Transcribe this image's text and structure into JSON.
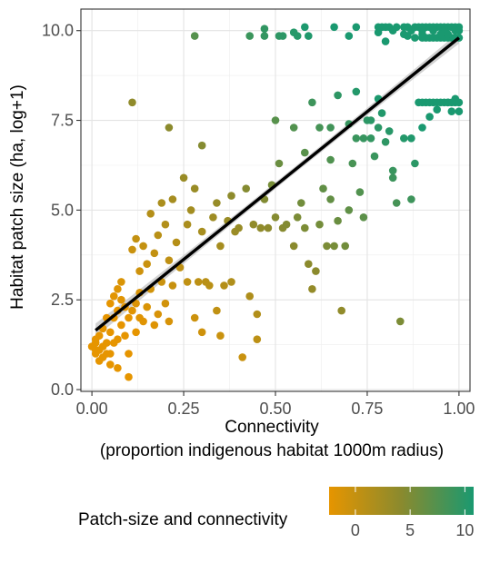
{
  "chart_data": {
    "type": "scatter",
    "xlabel_line1": "Connectivity",
    "xlabel_line2": "(proportion indigenous habitat 1000m radius)",
    "ylabel": "Habitat patch size (ha, log+1)",
    "xlim": [
      -0.03,
      1.03
    ],
    "ylim": [
      -0.05,
      10.6
    ],
    "x_ticks": [
      "0.00",
      "0.25",
      "0.50",
      "0.75",
      "1.00"
    ],
    "x_tick_values": [
      0,
      0.25,
      0.5,
      0.75,
      1.0
    ],
    "y_ticks": [
      "0.0",
      "2.5",
      "5.0",
      "7.5",
      "10.0"
    ],
    "y_tick_values": [
      0,
      2.5,
      5.0,
      7.5,
      10.0
    ],
    "grid": true,
    "trend_line": {
      "x": [
        0.01,
        1.0
      ],
      "y": [
        1.65,
        9.8
      ]
    },
    "legend": {
      "title": "Patch-size and connectivity",
      "position": "bottom",
      "ticks": [
        "0",
        "5",
        "10"
      ],
      "tick_values": [
        0,
        5,
        10
      ],
      "range": [
        -2.4,
        10.8
      ],
      "color_low": "#e69500",
      "color_mid": "#8a8a2e",
      "color_high": "#1a9970"
    },
    "points": [
      [
        0.0,
        1.2
      ],
      [
        0.01,
        1.0
      ],
      [
        0.01,
        1.1
      ],
      [
        0.01,
        1.3
      ],
      [
        0.01,
        1.4
      ],
      [
        0.02,
        0.8
      ],
      [
        0.02,
        1.1
      ],
      [
        0.02,
        1.5
      ],
      [
        0.03,
        0.9
      ],
      [
        0.03,
        1.2
      ],
      [
        0.03,
        1.7
      ],
      [
        0.04,
        1.0
      ],
      [
        0.04,
        1.3
      ],
      [
        0.04,
        2.0
      ],
      [
        0.05,
        0.7
      ],
      [
        0.05,
        1.0
      ],
      [
        0.05,
        1.6
      ],
      [
        0.05,
        2.4
      ],
      [
        0.06,
        1.3
      ],
      [
        0.06,
        2.0
      ],
      [
        0.06,
        2.6
      ],
      [
        0.07,
        0.6
      ],
      [
        0.07,
        1.4
      ],
      [
        0.07,
        2.2
      ],
      [
        0.07,
        2.8
      ],
      [
        0.08,
        1.8
      ],
      [
        0.08,
        2.5
      ],
      [
        0.08,
        3.0
      ],
      [
        0.09,
        1.5
      ],
      [
        0.09,
        2.3
      ],
      [
        0.1,
        1.0
      ],
      [
        0.1,
        2.0
      ],
      [
        0.1,
        0.35
      ],
      [
        0.11,
        2.2
      ],
      [
        0.11,
        3.9
      ],
      [
        0.12,
        1.6
      ],
      [
        0.12,
        2.4
      ],
      [
        0.12,
        4.2
      ],
      [
        0.13,
        2.0
      ],
      [
        0.13,
        3.3
      ],
      [
        0.13,
        2.7
      ],
      [
        0.14,
        1.9
      ],
      [
        0.14,
        4.0
      ],
      [
        0.15,
        2.3
      ],
      [
        0.15,
        3.5
      ],
      [
        0.16,
        2.8
      ],
      [
        0.16,
        4.9
      ],
      [
        0.17,
        1.8
      ],
      [
        0.17,
        3.8
      ],
      [
        0.18,
        2.1
      ],
      [
        0.18,
        4.3
      ],
      [
        0.19,
        3.0
      ],
      [
        0.19,
        5.2
      ],
      [
        0.2,
        2.4
      ],
      [
        0.2,
        4.6
      ],
      [
        0.21,
        3.6
      ],
      [
        0.21,
        1.9
      ],
      [
        0.22,
        5.3
      ],
      [
        0.22,
        2.9
      ],
      [
        0.23,
        4.1
      ],
      [
        0.24,
        3.4
      ],
      [
        0.25,
        5.9
      ],
      [
        0.26,
        3.0
      ],
      [
        0.26,
        4.6
      ],
      [
        0.27,
        5.0
      ],
      [
        0.28,
        2.0
      ],
      [
        0.28,
        5.6
      ],
      [
        0.29,
        3.0
      ],
      [
        0.3,
        4.4
      ],
      [
        0.3,
        1.6
      ],
      [
        0.31,
        3.0
      ],
      [
        0.32,
        2.9
      ],
      [
        0.33,
        4.8
      ],
      [
        0.34,
        2.2
      ],
      [
        0.34,
        5.2
      ],
      [
        0.35,
        1.5
      ],
      [
        0.35,
        4.0
      ],
      [
        0.36,
        2.9
      ],
      [
        0.37,
        4.7
      ],
      [
        0.38,
        5.4
      ],
      [
        0.38,
        3.0
      ],
      [
        0.39,
        4.4
      ],
      [
        0.4,
        4.5
      ],
      [
        0.41,
        0.9
      ],
      [
        0.42,
        5.6
      ],
      [
        0.43,
        2.6
      ],
      [
        0.44,
        4.6
      ],
      [
        0.45,
        2.1
      ],
      [
        0.45,
        1.4
      ],
      [
        0.46,
        4.5
      ],
      [
        0.47,
        5.3
      ],
      [
        0.48,
        4.5
      ],
      [
        0.49,
        5.7
      ],
      [
        0.5,
        4.8
      ],
      [
        0.51,
        6.3
      ],
      [
        0.52,
        4.5
      ],
      [
        0.53,
        4.6
      ],
      [
        0.55,
        4.0
      ],
      [
        0.56,
        4.8
      ],
      [
        0.57,
        5.2
      ],
      [
        0.58,
        4.5
      ],
      [
        0.58,
        6.6
      ],
      [
        0.59,
        3.5
      ],
      [
        0.6,
        2.8
      ],
      [
        0.61,
        3.3
      ],
      [
        0.62,
        4.6
      ],
      [
        0.63,
        5.6
      ],
      [
        0.64,
        4.0
      ],
      [
        0.65,
        5.3
      ],
      [
        0.65,
        6.4
      ],
      [
        0.66,
        4.0
      ],
      [
        0.67,
        4.7
      ],
      [
        0.68,
        2.2
      ],
      [
        0.69,
        4.0
      ],
      [
        0.7,
        5.0
      ],
      [
        0.71,
        6.3
      ],
      [
        0.72,
        7.0
      ],
      [
        0.73,
        5.5
      ],
      [
        0.74,
        4.8
      ],
      [
        0.75,
        7.5
      ],
      [
        0.76,
        7.0
      ],
      [
        0.77,
        6.5
      ],
      [
        0.78,
        7.3
      ],
      [
        0.8,
        6.9
      ],
      [
        0.81,
        7.2
      ],
      [
        0.82,
        5.9
      ],
      [
        0.83,
        5.2
      ],
      [
        0.84,
        1.9
      ],
      [
        0.85,
        7.0
      ],
      [
        0.87,
        5.3
      ],
      [
        0.88,
        6.3
      ],
      [
        0.9,
        7.3
      ],
      [
        0.92,
        7.6
      ],
      [
        0.94,
        7.8
      ],
      [
        0.97,
        8.0
      ],
      [
        0.99,
        8.1
      ],
      [
        0.11,
        8.0
      ],
      [
        0.21,
        7.3
      ],
      [
        0.3,
        6.8
      ],
      [
        0.5,
        7.5
      ],
      [
        0.55,
        7.3
      ],
      [
        0.6,
        8.0
      ],
      [
        0.62,
        7.3
      ],
      [
        0.65,
        7.3
      ],
      [
        0.67,
        8.2
      ],
      [
        0.7,
        7.4
      ],
      [
        0.72,
        8.3
      ],
      [
        0.74,
        7.0
      ],
      [
        0.76,
        7.5
      ],
      [
        0.78,
        8.1
      ],
      [
        0.79,
        7.7
      ],
      [
        0.82,
        6.1
      ],
      [
        0.87,
        7.0
      ],
      [
        0.89,
        8.0
      ],
      [
        0.9,
        8.0
      ],
      [
        0.91,
        8.0
      ],
      [
        0.92,
        8.0
      ],
      [
        0.93,
        8.0
      ],
      [
        0.94,
        8.0
      ],
      [
        0.95,
        8.0
      ],
      [
        0.96,
        8.0
      ],
      [
        0.97,
        8.0
      ],
      [
        0.98,
        8.0
      ],
      [
        0.99,
        8.0
      ],
      [
        1.0,
        8.0
      ],
      [
        0.98,
        7.75
      ],
      [
        1.0,
        7.75
      ],
      [
        0.28,
        9.85
      ],
      [
        0.43,
        9.85
      ],
      [
        0.47,
        9.85
      ],
      [
        0.51,
        9.85
      ],
      [
        0.52,
        9.85
      ],
      [
        0.56,
        9.85
      ],
      [
        0.59,
        9.85
      ],
      [
        0.7,
        9.85
      ],
      [
        0.47,
        10.05
      ],
      [
        0.58,
        10.1
      ],
      [
        0.66,
        10.1
      ],
      [
        0.72,
        10.1
      ],
      [
        0.55,
        9.95
      ],
      [
        0.78,
        9.95
      ],
      [
        0.78,
        10.1
      ],
      [
        0.79,
        10.1
      ],
      [
        0.8,
        10.1
      ],
      [
        0.81,
        10.1
      ],
      [
        0.83,
        10.1
      ],
      [
        0.85,
        10.1
      ],
      [
        0.86,
        10.1
      ],
      [
        0.88,
        10.1
      ],
      [
        0.89,
        10.1
      ],
      [
        0.9,
        10.1
      ],
      [
        0.91,
        10.1
      ],
      [
        0.92,
        10.1
      ],
      [
        0.93,
        10.1
      ],
      [
        0.94,
        10.1
      ],
      [
        0.95,
        10.1
      ],
      [
        0.96,
        10.1
      ],
      [
        0.97,
        10.1
      ],
      [
        0.98,
        10.1
      ],
      [
        0.99,
        10.1
      ],
      [
        1.0,
        10.1
      ],
      [
        0.82,
        10.0
      ],
      [
        0.85,
        9.9
      ],
      [
        0.88,
        9.8
      ],
      [
        0.9,
        9.8
      ],
      [
        0.91,
        9.8
      ],
      [
        0.92,
        9.8
      ],
      [
        0.93,
        9.8
      ],
      [
        0.94,
        9.8
      ],
      [
        0.95,
        9.8
      ],
      [
        0.96,
        9.8
      ],
      [
        0.97,
        9.8
      ],
      [
        0.98,
        9.8
      ],
      [
        0.99,
        9.8
      ],
      [
        1.0,
        9.8
      ],
      [
        0.87,
        10.0
      ],
      [
        0.9,
        10.0
      ],
      [
        0.93,
        10.0
      ],
      [
        0.96,
        10.0
      ],
      [
        0.99,
        10.0
      ],
      [
        0.97,
        9.9
      ],
      [
        0.8,
        9.7
      ],
      [
        0.9,
        9.9
      ],
      [
        0.95,
        9.9
      ],
      [
        1.0,
        10.0
      ],
      [
        0.86,
        9.85
      ]
    ]
  }
}
